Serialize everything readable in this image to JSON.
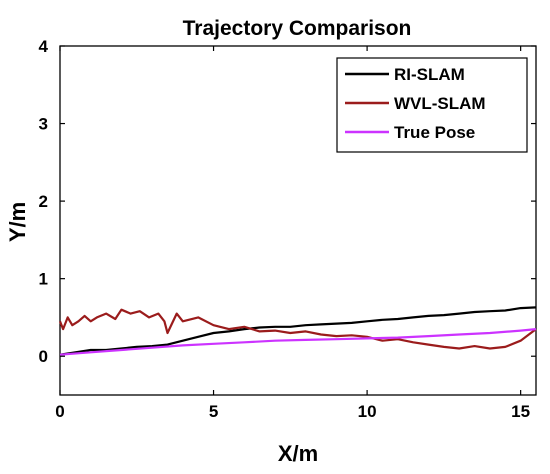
{
  "chart_data": {
    "type": "line",
    "title": "Trajectory Comparison",
    "xlabel": "X/m",
    "ylabel": "Y/m",
    "xlim": [
      0,
      15.5
    ],
    "ylim": [
      -0.5,
      4
    ],
    "x_ticks": [
      0,
      5,
      10,
      15
    ],
    "y_ticks": [
      0,
      1,
      2,
      3,
      4
    ],
    "grid": false,
    "legend_position": "top-right",
    "series": [
      {
        "name": "RI-SLAM",
        "color": "#000000",
        "x": [
          0,
          0.5,
          1,
          1.5,
          2,
          2.5,
          3,
          3.5,
          4,
          4.5,
          5,
          5.5,
          6,
          6.5,
          7,
          7.5,
          8,
          8.5,
          9,
          9.5,
          10,
          10.5,
          11,
          11.5,
          12,
          12.5,
          13,
          13.5,
          14,
          14.5,
          15,
          15.5
        ],
        "y": [
          0.02,
          0.05,
          0.08,
          0.08,
          0.1,
          0.12,
          0.13,
          0.15,
          0.2,
          0.25,
          0.3,
          0.32,
          0.35,
          0.37,
          0.38,
          0.38,
          0.4,
          0.41,
          0.42,
          0.43,
          0.45,
          0.47,
          0.48,
          0.5,
          0.52,
          0.53,
          0.55,
          0.57,
          0.58,
          0.59,
          0.62,
          0.63
        ]
      },
      {
        "name": "WVL-SLAM",
        "color": "#9b1c1c",
        "x": [
          0,
          0.1,
          0.25,
          0.4,
          0.6,
          0.8,
          1,
          1.2,
          1.5,
          1.8,
          2,
          2.3,
          2.6,
          2.9,
          3.2,
          3.4,
          3.5,
          3.8,
          4,
          4.5,
          5,
          5.5,
          6,
          6.5,
          7,
          7.5,
          8,
          8.5,
          9,
          9.5,
          10,
          10.5,
          11,
          11.5,
          12,
          12.5,
          13,
          13.5,
          14,
          14.5,
          15,
          15.5
        ],
        "y": [
          0.45,
          0.35,
          0.5,
          0.4,
          0.45,
          0.52,
          0.45,
          0.5,
          0.55,
          0.48,
          0.6,
          0.55,
          0.58,
          0.5,
          0.55,
          0.45,
          0.3,
          0.55,
          0.45,
          0.5,
          0.4,
          0.35,
          0.38,
          0.32,
          0.33,
          0.3,
          0.32,
          0.28,
          0.26,
          0.27,
          0.25,
          0.2,
          0.22,
          0.18,
          0.15,
          0.12,
          0.1,
          0.13,
          0.1,
          0.12,
          0.2,
          0.35
        ]
      },
      {
        "name": "True Pose",
        "color": "#cc33ff",
        "x": [
          0,
          1,
          2,
          3,
          4,
          5,
          6,
          7,
          8,
          9,
          10,
          11,
          12,
          13,
          14,
          15,
          15.5
        ],
        "y": [
          0.02,
          0.05,
          0.08,
          0.11,
          0.14,
          0.16,
          0.18,
          0.2,
          0.21,
          0.22,
          0.23,
          0.24,
          0.26,
          0.28,
          0.3,
          0.33,
          0.35
        ]
      }
    ]
  }
}
